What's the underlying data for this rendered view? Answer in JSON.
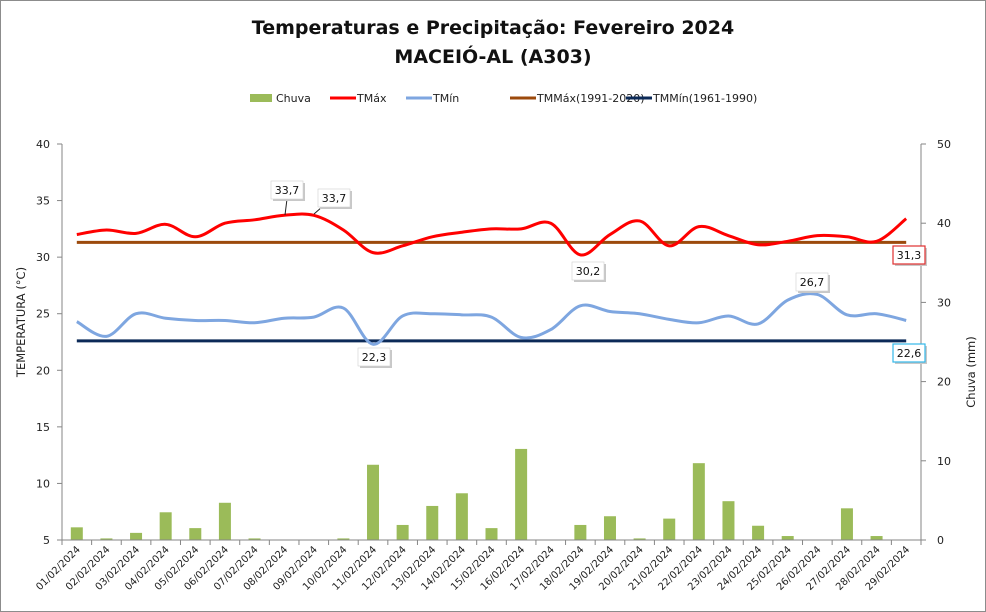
{
  "chart_data": {
    "type": "bar+line",
    "title": "Temperaturas e Precipitação: Fevereiro 2024",
    "subtitle": "MACEIÓ-AL (A303)",
    "ylabel": "TEMPERATURA (°C)",
    "y2label": "Chuva (mm)",
    "ylim": [
      5,
      40
    ],
    "yticks": [
      5,
      10,
      15,
      20,
      25,
      30,
      35,
      40
    ],
    "y2lim": [
      0,
      50
    ],
    "y2ticks": [
      0,
      10,
      20,
      30,
      40,
      50
    ],
    "legend_position": "top",
    "grid": false,
    "categories": [
      "01/02/2024",
      "02/02/2024",
      "03/02/2024",
      "04/02/2024",
      "05/02/2024",
      "06/02/2024",
      "07/02/2024",
      "08/02/2024",
      "09/02/2024",
      "10/02/2024",
      "11/02/2024",
      "12/02/2024",
      "13/02/2024",
      "14/02/2024",
      "15/02/2024",
      "16/02/2024",
      "17/02/2024",
      "18/02/2024",
      "19/02/2024",
      "20/02/2024",
      "21/02/2024",
      "22/02/2024",
      "23/02/2024",
      "24/02/2024",
      "25/02/2024",
      "26/02/2024",
      "27/02/2024",
      "28/02/2024",
      "29/02/2024"
    ],
    "series": [
      {
        "name": "Chuva",
        "type": "bar",
        "axis": "right",
        "color": "#9bbb59",
        "values": [
          1.6,
          0.2,
          0.9,
          3.5,
          1.5,
          4.7,
          0.2,
          0,
          0,
          0.2,
          9.5,
          1.9,
          4.3,
          5.9,
          1.5,
          11.5,
          0,
          1.9,
          3.0,
          0.2,
          2.7,
          9.7,
          4.9,
          1.8,
          0.5,
          0,
          4.0,
          0.5,
          0
        ]
      },
      {
        "name": "TMáx",
        "type": "line",
        "axis": "left",
        "color": "#ff0000",
        "values": [
          32.0,
          32.4,
          32.1,
          32.9,
          31.8,
          33.0,
          33.3,
          33.7,
          33.7,
          32.4,
          30.4,
          31.0,
          31.8,
          32.2,
          32.5,
          32.5,
          33.0,
          30.2,
          32.0,
          33.2,
          31.0,
          32.7,
          31.9,
          31.1,
          31.4,
          31.9,
          31.8,
          31.4,
          33.4
        ]
      },
      {
        "name": "TMín",
        "type": "line",
        "axis": "left",
        "color": "#7ea6e0",
        "values": [
          24.3,
          23.0,
          25.0,
          24.6,
          24.4,
          24.4,
          24.2,
          24.6,
          24.7,
          25.5,
          22.3,
          24.8,
          25.0,
          24.9,
          24.7,
          22.9,
          23.6,
          25.7,
          25.2,
          25.0,
          24.5,
          24.2,
          24.8,
          24.1,
          26.2,
          26.7,
          24.9,
          25.0,
          24.4
        ]
      },
      {
        "name": "TMMáx(1991-2020)",
        "type": "line",
        "axis": "left",
        "color": "#9c4a0c",
        "constant": 31.3
      },
      {
        "name": "TMMín(1961-1990)",
        "type": "line",
        "axis": "left",
        "color": "#0c2a58",
        "constant": 22.6
      }
    ],
    "annotations": [
      {
        "series": "TMáx",
        "day_index": 7,
        "text": "33,7"
      },
      {
        "series": "TMáx",
        "day_index": 8,
        "text": "33,7"
      },
      {
        "series": "TMáx",
        "day_index": 17,
        "text": "30,2"
      },
      {
        "series": "TMín",
        "day_index": 10,
        "text": "22,3"
      },
      {
        "series": "TMín",
        "day_index": 25,
        "text": "26,7"
      },
      {
        "series": "TMMáx(1991-2020)",
        "day_index": 28,
        "text": "31,3",
        "border": "#e03030"
      },
      {
        "series": "TMMín(1961-1990)",
        "day_index": 28,
        "text": "22,6",
        "border": "#33b8e8"
      }
    ]
  }
}
